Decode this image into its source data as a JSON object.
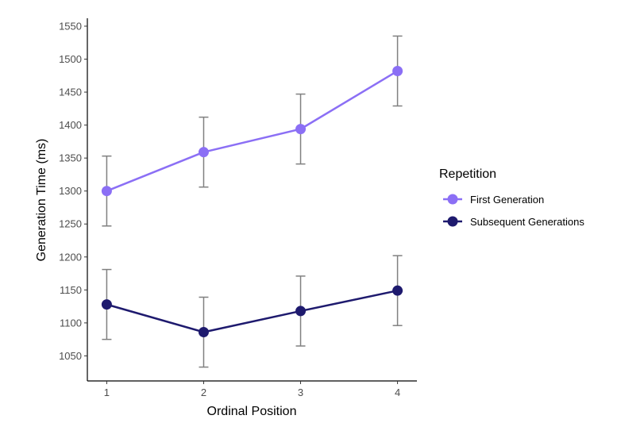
{
  "chart_data": {
    "type": "line",
    "xlabel": "Ordinal Position",
    "ylabel": "Generation Time (ms)",
    "x": [
      1,
      2,
      3,
      4
    ],
    "xticks": [
      "1",
      "2",
      "3",
      "4"
    ],
    "yticks": [
      1050,
      1100,
      1150,
      1200,
      1250,
      1300,
      1350,
      1400,
      1450,
      1500,
      1550
    ],
    "ylim": [
      1012,
      1562
    ],
    "xlim": [
      0.8,
      4.2
    ],
    "grid": false,
    "legend": {
      "title": "Repetition",
      "placement": "right"
    },
    "series": [
      {
        "name": "First Generation",
        "color": "#8b6ff5",
        "values": [
          1300,
          1359,
          1394,
          1482
        ],
        "error_low": [
          1247,
          1306,
          1341,
          1429
        ],
        "error_high": [
          1353,
          1412,
          1447,
          1535
        ]
      },
      {
        "name": "Subsequent Generations",
        "color": "#1e1a6e",
        "values": [
          1128,
          1086,
          1118,
          1149
        ],
        "error_low": [
          1075,
          1033,
          1065,
          1096
        ],
        "error_high": [
          1181,
          1139,
          1171,
          1202
        ]
      }
    ],
    "errorbar_color": "#808080"
  }
}
